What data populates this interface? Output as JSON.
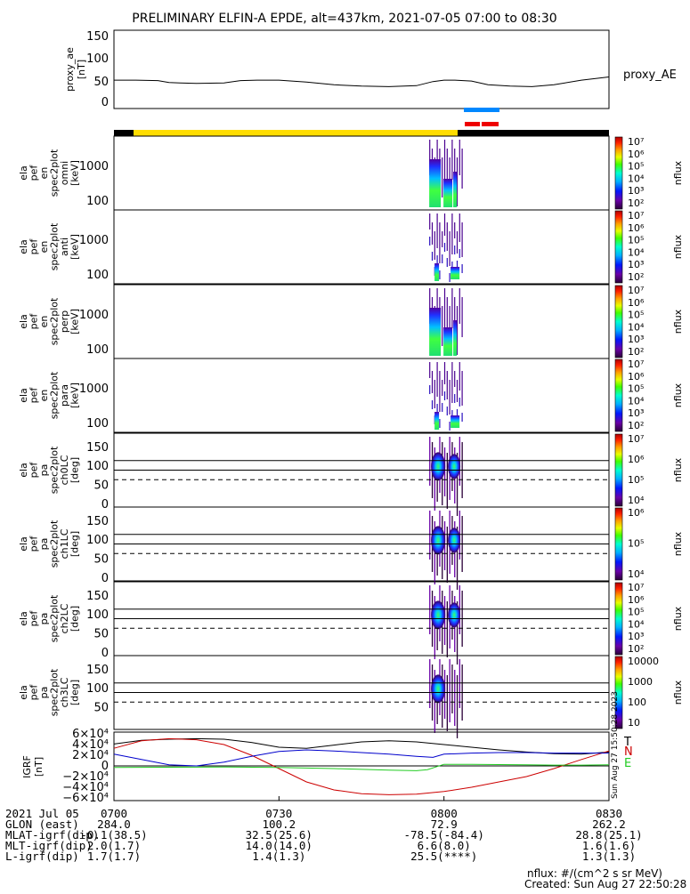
{
  "title": "PRELIMINARY ELFIN-A EPDE, alt=437km, 2021-07-05 07:00 to 08:30",
  "ae_panel": {
    "ylabel_1": "proxy_ae",
    "ylabel_2": "[nT]",
    "yticks": [
      "150",
      "100",
      "50",
      "0"
    ],
    "legend": "proxy_AE",
    "ylim": [
      0,
      160
    ]
  },
  "spec_panels": [
    {
      "id": "omni",
      "label_lines": [
        "ela",
        "pef",
        "en",
        "spec2plot",
        "omni",
        "[keV]"
      ],
      "yticks": [
        "1000",
        "100"
      ]
    },
    {
      "id": "anti",
      "label_lines": [
        "ela",
        "pef",
        "en",
        "spec2plot",
        "anti",
        "[keV]"
      ],
      "yticks": [
        "1000",
        "100"
      ]
    },
    {
      "id": "perp",
      "label_lines": [
        "ela",
        "pef",
        "en",
        "spec2plot",
        "perp",
        "[keV]"
      ],
      "yticks": [
        "1000",
        "100"
      ]
    },
    {
      "id": "para",
      "label_lines": [
        "ela",
        "pef",
        "en",
        "spec2plot",
        "para",
        "[keV]"
      ],
      "yticks": [
        "1000",
        "100"
      ]
    }
  ],
  "pa_panels": [
    {
      "id": "ch0LC",
      "label_lines": [
        "ela",
        "pef",
        "pa",
        "spec2plot",
        "ch0LC",
        "[deg]"
      ],
      "yticks": [
        "150",
        "100",
        "50",
        "0"
      ]
    },
    {
      "id": "ch1LC",
      "label_lines": [
        "ela",
        "pef",
        "pa",
        "spec2plot",
        "ch1LC",
        "[deg]"
      ],
      "yticks": [
        "150",
        "100",
        "50",
        "0"
      ]
    },
    {
      "id": "ch2LC",
      "label_lines": [
        "ela",
        "pef",
        "pa",
        "spec2plot",
        "ch2LC",
        "[deg]"
      ],
      "yticks": [
        "150",
        "100",
        "50",
        "0"
      ]
    },
    {
      "id": "ch3LC",
      "label_lines": [
        "ela",
        "pef",
        "pa",
        "spec2plot",
        "ch3LC",
        "[deg]"
      ],
      "yticks": [
        "150",
        "100",
        "50"
      ]
    }
  ],
  "colorbars": [
    {
      "labels": [
        "10⁷",
        "10⁶",
        "10⁵",
        "10⁴",
        "10³",
        "10²"
      ],
      "title": "nflux"
    },
    {
      "labels": [
        "10⁷",
        "10⁶",
        "10⁵",
        "10⁴",
        "10³",
        "10²"
      ],
      "title": "nflux"
    },
    {
      "labels": [
        "10⁷",
        "10⁶",
        "10⁵",
        "10⁴",
        "10³",
        "10²"
      ],
      "title": "nflux"
    },
    {
      "labels": [
        "10⁷",
        "10⁶",
        "10⁵",
        "10⁴",
        "10³",
        "10²"
      ],
      "title": "nflux"
    },
    {
      "labels": [
        "10⁷",
        "10⁶",
        "10⁵",
        "10⁴"
      ],
      "title": "nflux"
    },
    {
      "labels": [
        "10⁶",
        "10⁵",
        "10⁴"
      ],
      "title": "nflux"
    },
    {
      "labels": [
        "10⁷",
        "10⁶",
        "10⁵",
        "10⁴",
        "10³",
        "10²"
      ],
      "title": "nflux"
    },
    {
      "labels": [
        "10000",
        "1000",
        "100",
        "10"
      ],
      "title": "nflux"
    }
  ],
  "igrf_panel": {
    "ylabel_1": "IGRF",
    "ylabel_2": "[nT]",
    "yticks": [
      "6×10⁴",
      "4×10⁴",
      "2×10⁴",
      "0",
      "−2×10⁴",
      "−4×10⁴",
      "−6×10⁴"
    ],
    "legend": [
      "T",
      "N",
      "E"
    ],
    "colors": {
      "T": "#000000",
      "N": "#cc0000",
      "E": "#22cc22",
      "blue": "#0000cc"
    },
    "side_text": "Sun Aug 27 15:50:28 2023"
  },
  "bars": {
    "colors": {
      "black": "#000000",
      "yellow": "#ffdd00",
      "blue": "#0088ff",
      "red": "#ee0000"
    }
  },
  "footer": {
    "rows": [
      {
        "label": "2021 Jul 05",
        "values": [
          "0700",
          "0730",
          "0800",
          "0830"
        ]
      },
      {
        "label": "GLON (east)",
        "values": [
          "284.0",
          "100.2",
          "72.9",
          "262.2"
        ]
      },
      {
        "label": "MLAT-igrf(dip)",
        "values": [
          "-0.1(38.5)",
          "32.5(25.6)",
          "-78.5(-84.4)",
          "28.8(25.1)"
        ]
      },
      {
        "label": "MLT-igrf(dip)",
        "values": [
          "2.0(1.7)",
          "14.0(14.0)",
          "6.6(8.0)",
          "1.6(1.6)"
        ]
      },
      {
        "label": "L-igrf(dip)",
        "values": [
          "1.7(1.7)",
          "1.4(1.3)",
          "25.5(****)",
          "1.3(1.3)"
        ]
      }
    ],
    "units_note": "nflux: #/(cm^2 s sr MeV)",
    "created": "Created: Sun Aug 27 22:50:28 2023"
  },
  "chart_data": {
    "type": "line",
    "title": "PRELIMINARY ELFIN-A EPDE, alt=437km, 2021-07-05 07:00 to 08:30",
    "x_ticks": [
      "0700",
      "0730",
      "0800",
      "0830"
    ],
    "x_minutes": [
      0,
      30,
      60,
      90
    ],
    "proxy_ae": {
      "name": "proxy_AE",
      "x": [
        0,
        4,
        8,
        10,
        12,
        15,
        20,
        23,
        26,
        30,
        35,
        40,
        45,
        50,
        55,
        58,
        60,
        62,
        65,
        68,
        72,
        76,
        80,
        85,
        90
      ],
      "y": [
        48,
        48,
        47,
        43,
        42,
        41,
        42,
        47,
        48,
        48,
        44,
        38,
        35,
        34,
        36,
        45,
        48,
        48,
        46,
        38,
        35,
        34,
        38,
        48,
        55
      ],
      "ylim": [
        0,
        160
      ]
    },
    "igrf": {
      "ylim": [
        -60000,
        60000
      ],
      "series": [
        {
          "name": "T",
          "x": [
            0,
            5,
            10,
            15,
            20,
            25,
            30,
            35,
            40,
            45,
            50,
            55,
            60,
            65,
            70,
            75,
            80,
            85,
            90
          ],
          "y": [
            41000,
            48000,
            50000,
            51000,
            50000,
            44000,
            35000,
            33000,
            39000,
            45000,
            47000,
            45000,
            40000,
            35000,
            30000,
            26000,
            23000,
            22000,
            26000
          ]
        },
        {
          "name": "N",
          "x": [
            0,
            5,
            10,
            15,
            20,
            25,
            30,
            35,
            40,
            45,
            50,
            55,
            60,
            65,
            70,
            75,
            80,
            85,
            90
          ],
          "y": [
            33000,
            47000,
            51000,
            49000,
            40000,
            20000,
            -5000,
            -30000,
            -45000,
            -52000,
            -54000,
            -53000,
            -48000,
            -40000,
            -30000,
            -20000,
            -5000,
            12000,
            28000
          ]
        },
        {
          "name": "blue",
          "x": [
            0,
            5,
            10,
            15,
            20,
            25,
            30,
            35,
            40,
            45,
            50,
            55,
            58,
            60,
            65,
            70,
            75,
            80,
            85,
            90
          ],
          "y": [
            22000,
            12000,
            2000,
            0,
            7000,
            18000,
            27000,
            30000,
            28000,
            25000,
            22000,
            18000,
            16000,
            22000,
            24000,
            25000,
            25000,
            24000,
            24000,
            24000
          ]
        },
        {
          "name": "E",
          "x": [
            0,
            10,
            20,
            30,
            40,
            50,
            55,
            57,
            60,
            65,
            70,
            75,
            80,
            85,
            90
          ],
          "y": [
            -3000,
            -2500,
            -2000,
            -3000,
            -5000,
            -8000,
            -9000,
            -7000,
            3000,
            3000,
            2500,
            2000,
            1500,
            1500,
            2000
          ]
        }
      ]
    },
    "spectrogram_time_window_minutes": [
      57,
      62
    ]
  }
}
